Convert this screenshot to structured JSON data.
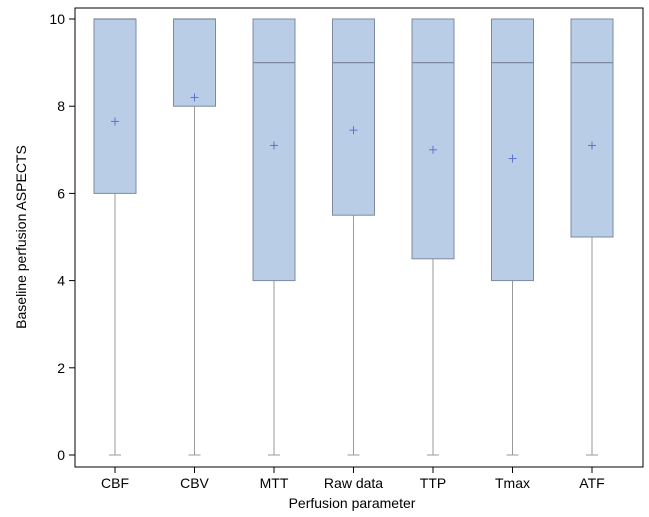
{
  "chart_data": {
    "type": "box",
    "xlabel": "Perfusion parameter",
    "ylabel": "Baseline perfusion ASPECTS",
    "ylim": [
      0,
      10
    ],
    "yticks": [
      "0",
      "2",
      "4",
      "6",
      "8",
      "10"
    ],
    "grid": false,
    "colors": {
      "box_fill": "#b9cde6",
      "box_stroke": "#7d8aa0",
      "mean_marker": "#5a74d4",
      "whisker": "#9a9a9a",
      "frame": "#000000"
    },
    "categories": [
      "CBF",
      "CBV",
      "MTT",
      "Raw data",
      "TTP",
      "Tmax",
      "ATF"
    ],
    "boxes": [
      {
        "category": "CBF",
        "min": 0,
        "q1": 6,
        "median": 10,
        "q3": 10,
        "max": 10,
        "mean": 7.65
      },
      {
        "category": "CBV",
        "min": 0,
        "q1": 8,
        "median": 10,
        "q3": 10,
        "max": 10,
        "mean": 8.2
      },
      {
        "category": "MTT",
        "min": 0,
        "q1": 4,
        "median": 9,
        "q3": 10,
        "max": 10,
        "mean": 7.1
      },
      {
        "category": "Raw data",
        "min": 0,
        "q1": 5.5,
        "median": 9,
        "q3": 10,
        "max": 10,
        "mean": 7.45
      },
      {
        "category": "TTP",
        "min": 0,
        "q1": 4.5,
        "median": 9,
        "q3": 10,
        "max": 10,
        "mean": 7.0
      },
      {
        "category": "Tmax",
        "min": 0,
        "q1": 4,
        "median": 9,
        "q3": 10,
        "max": 10,
        "mean": 6.8
      },
      {
        "category": "ATF",
        "min": 0,
        "q1": 5,
        "median": 9,
        "q3": 10,
        "max": 10,
        "mean": 7.1
      }
    ]
  }
}
